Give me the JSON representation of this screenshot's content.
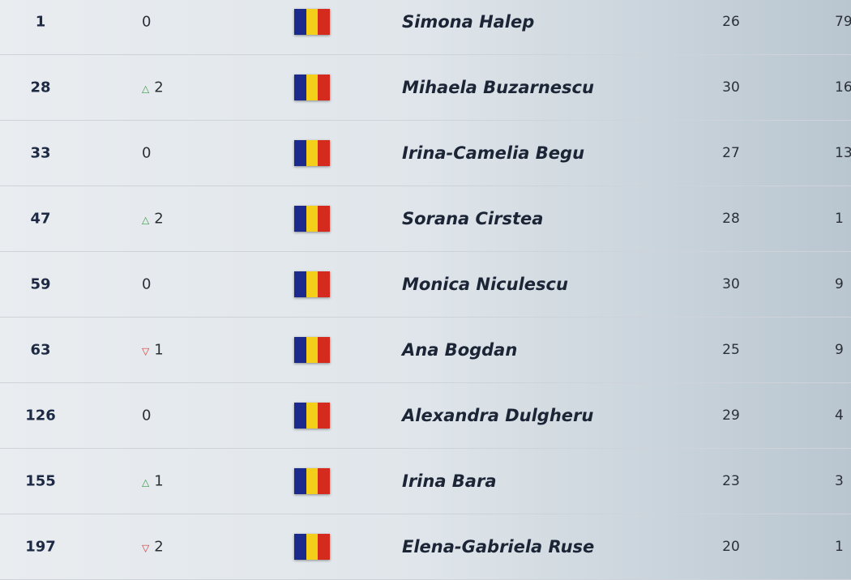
{
  "colors": {
    "flag_blue": "#1b2a8c",
    "flag_yellow": "#f4cf1a",
    "flag_red": "#d52b1e",
    "up": "#3d9a4a",
    "down": "#d63b3b"
  },
  "rows": [
    {
      "rank": "1",
      "move": "0",
      "dir": "none",
      "name": "Simona Halep",
      "age": "26",
      "points": "79"
    },
    {
      "rank": "28",
      "move": "2",
      "dir": "up",
      "name": "Mihaela Buzarnescu",
      "age": "30",
      "points": "16"
    },
    {
      "rank": "33",
      "move": "0",
      "dir": "none",
      "name": "Irina-Camelia Begu",
      "age": "27",
      "points": "13"
    },
    {
      "rank": "47",
      "move": "2",
      "dir": "up",
      "name": "Sorana Cirstea",
      "age": "28",
      "points": "1"
    },
    {
      "rank": "59",
      "move": "0",
      "dir": "none",
      "name": "Monica Niculescu",
      "age": "30",
      "points": "9"
    },
    {
      "rank": "63",
      "move": "1",
      "dir": "down",
      "name": "Ana Bogdan",
      "age": "25",
      "points": "9"
    },
    {
      "rank": "126",
      "move": "0",
      "dir": "none",
      "name": "Alexandra Dulgheru",
      "age": "29",
      "points": "4"
    },
    {
      "rank": "155",
      "move": "1",
      "dir": "up",
      "name": "Irina Bara",
      "age": "23",
      "points": "3"
    },
    {
      "rank": "197",
      "move": "2",
      "dir": "down",
      "name": "Elena-Gabriela Ruse",
      "age": "20",
      "points": "1"
    }
  ]
}
